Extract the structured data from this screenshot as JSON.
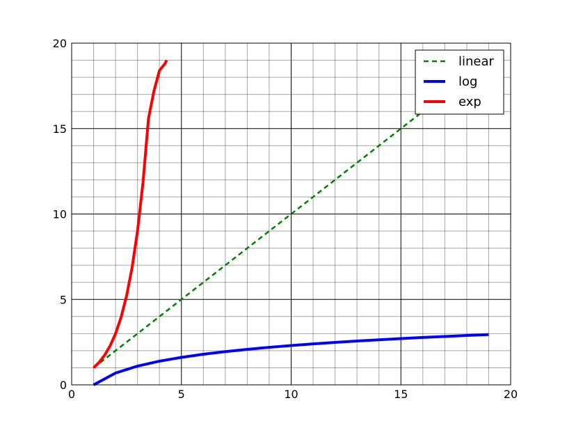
{
  "chart_data": {
    "type": "line",
    "title": "",
    "xlabel": "",
    "ylabel": "",
    "xlim": [
      0,
      20
    ],
    "ylim": [
      0,
      20
    ],
    "xticks": [
      "0",
      "5",
      "10",
      "15",
      "20"
    ],
    "yticks": [
      "0",
      "5",
      "10",
      "15",
      "20"
    ],
    "grid": true,
    "minor_grid": true,
    "legend_position": "top-right",
    "series": [
      {
        "name": "linear",
        "color": "#008000",
        "style": "dashed",
        "x": [
          1,
          2,
          3,
          4,
          5,
          6,
          7,
          8,
          9,
          10,
          11,
          12,
          13,
          14,
          15,
          16,
          17,
          18,
          19
        ],
        "y": [
          1,
          2,
          3,
          4,
          5,
          6,
          7,
          8,
          9,
          10,
          11,
          12,
          13,
          14,
          15,
          16,
          17,
          18,
          19
        ]
      },
      {
        "name": "log",
        "color": "#0000ff",
        "style": "solid",
        "x": [
          1,
          2,
          3,
          4,
          5,
          6,
          7,
          8,
          9,
          10,
          11,
          12,
          13,
          14,
          15,
          16,
          17,
          18,
          19
        ],
        "y": [
          0,
          0.693,
          1.099,
          1.386,
          1.609,
          1.792,
          1.946,
          2.079,
          2.197,
          2.303,
          2.398,
          2.485,
          2.565,
          2.639,
          2.708,
          2.773,
          2.833,
          2.89,
          2.944
        ]
      },
      {
        "name": "exp",
        "color": "#ff0000",
        "style": "solid",
        "x": [
          1,
          1.25,
          1.5,
          1.75,
          2,
          2.25,
          2.5,
          2.75,
          3,
          3.25,
          3.5,
          3.75,
          4,
          4.25,
          4.33
        ],
        "y": [
          1,
          1.32,
          1.73,
          2.28,
          3,
          3.95,
          5.2,
          6.84,
          9,
          11.84,
          15.59,
          17.2,
          18.4,
          18.8,
          19
        ]
      }
    ]
  }
}
